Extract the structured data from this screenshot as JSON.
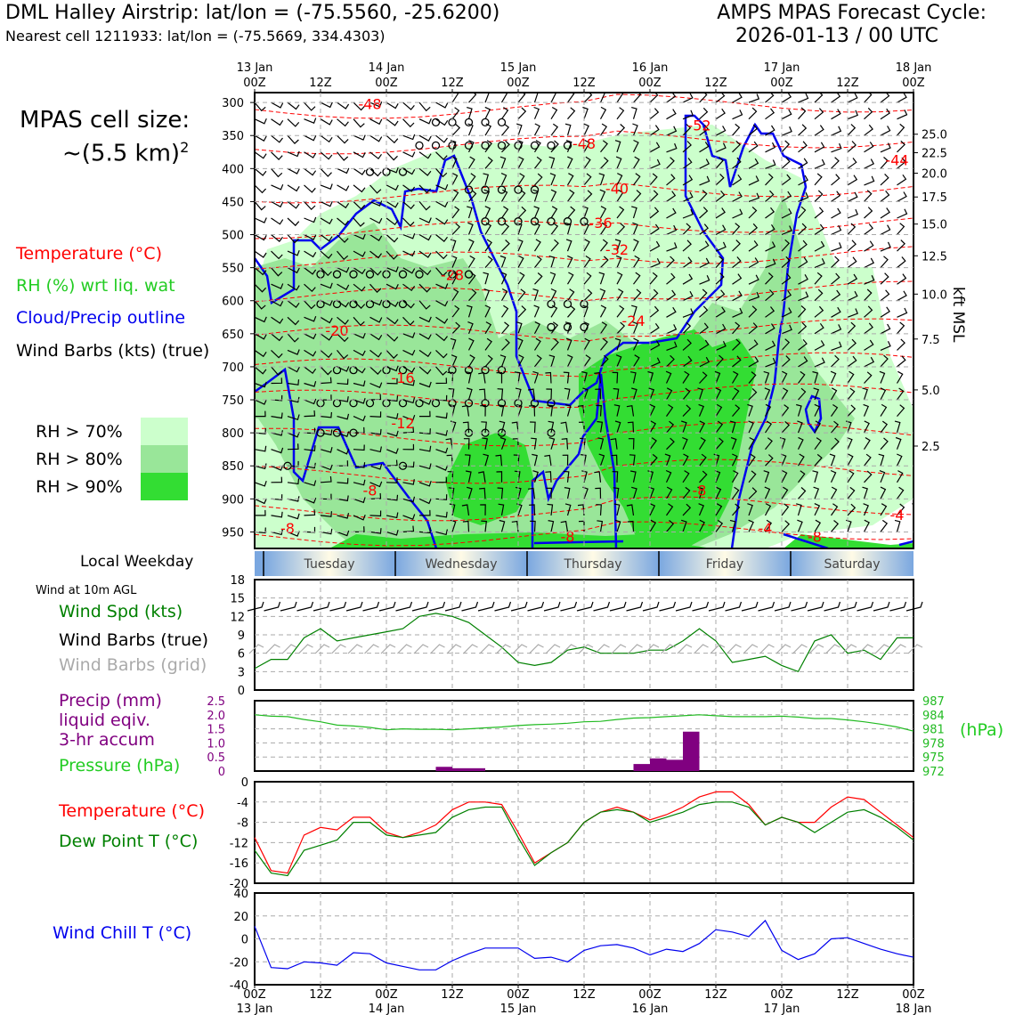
{
  "header": {
    "title_left": "DML Halley Airstrip: lat/lon = (-75.5560, -25.6200)",
    "subtitle_left": "Nearest cell 1211933: lat/lon = (-75.5669, 334.4303)",
    "title_right_1": "AMPS MPAS Forecast Cycle:",
    "title_right_2": "2026-01-13 / 00 UTC"
  },
  "legend": {
    "cell_size_1": "MPAS cell size:",
    "cell_size_2": "~(5.5 km)",
    "cell_size_sup": "2",
    "temperature": "Temperature (°C)",
    "rh": "RH (%) wrt liq. wat",
    "cloud": "Cloud/Precip outline",
    "wind": "Wind Barbs (kts) (true)",
    "rh70": "RH > 70%",
    "rh80": "RH > 80%",
    "rh90": "RH > 90%",
    "rh_colors": {
      "rh70": "#ccffcc",
      "rh80": "#99e699",
      "rh90": "#33dd33"
    },
    "local_weekday": "Local Weekday",
    "wind_10m": "Wind at 10m AGL",
    "wind_spd": "Wind Spd (kts)",
    "wind_barbs_true": "Wind Barbs (true)",
    "wind_barbs_grid": "Wind Barbs (grid)",
    "precip_1": "Precip (mm)",
    "precip_2": "liquid eqiv.",
    "precip_3": "3-hr accum",
    "pressure": "Pressure (hPa)",
    "pressure_unit": "(hPa)",
    "temp2": "Temperature (°C)",
    "dewpoint": "Dew Point T (°C)",
    "windchill": "Wind Chill T (°C)",
    "kft": "kft MSL"
  },
  "time_axis": {
    "top_days": [
      "13 Jan",
      "14 Jan",
      "15 Jan",
      "16 Jan",
      "17 Jan",
      "18 Jan"
    ],
    "hour_labels": [
      "00Z",
      "12Z",
      "00Z",
      "12Z",
      "00Z",
      "12Z",
      "00Z",
      "12Z",
      "00Z",
      "12Z",
      "00Z"
    ]
  },
  "weekdays": [
    "Tuesday",
    "Wednesday",
    "Thursday",
    "Friday",
    "Saturday"
  ],
  "chart_data": [
    {
      "type": "heatmap",
      "title": "Vertical cross-section",
      "y_pressure_ticks": [
        300,
        350,
        400,
        450,
        500,
        550,
        600,
        650,
        700,
        750,
        800,
        850,
        900,
        950
      ],
      "y_kft_ticks": [
        "25.0",
        "22.5",
        "20.0",
        "17.5",
        "15.0",
        "12.5",
        "10.0",
        "7.5",
        "5.0",
        "2.5"
      ],
      "y_kft_pressures": [
        348,
        376,
        407,
        443,
        484,
        532,
        590,
        658,
        735,
        820
      ],
      "temp_labels": [
        {
          "text": "-48",
          "hour": 21,
          "p": 310
        },
        {
          "text": "-52",
          "hour": 81,
          "p": 342
        },
        {
          "text": "-48",
          "hour": 60,
          "p": 370
        },
        {
          "text": "-44",
          "hour": 117,
          "p": 395
        },
        {
          "text": "-40",
          "hour": 66,
          "p": 438
        },
        {
          "text": "-36",
          "hour": 63,
          "p": 490
        },
        {
          "text": "-32",
          "hour": 66,
          "p": 530
        },
        {
          "text": "-28",
          "hour": 36,
          "p": 569
        },
        {
          "text": "-24",
          "hour": 69,
          "p": 638
        },
        {
          "text": "-20",
          "hour": 15,
          "p": 653
        },
        {
          "text": "-16",
          "hour": 27,
          "p": 724
        },
        {
          "text": "-12",
          "hour": 27,
          "p": 793
        },
        {
          "text": "-8",
          "hour": 21,
          "p": 895
        },
        {
          "text": "-8",
          "hour": 81,
          "p": 895
        },
        {
          "text": "-8",
          "hour": 6,
          "p": 952
        },
        {
          "text": "-8",
          "hour": 57,
          "p": 965
        },
        {
          "text": "-4",
          "hour": 93,
          "p": 952
        },
        {
          "text": "-8",
          "hour": 102,
          "p": 965
        },
        {
          "text": "-4",
          "hour": 117,
          "p": 932
        }
      ]
    },
    {
      "type": "line",
      "title": "Wind at 10m AGL",
      "x_hours": [
        0,
        3,
        6,
        9,
        12,
        15,
        18,
        21,
        24,
        27,
        30,
        33,
        36,
        39,
        42,
        45,
        48,
        51,
        54,
        57,
        60,
        63,
        66,
        69,
        72,
        75,
        78,
        81,
        84,
        87,
        90,
        93,
        96,
        99,
        102,
        105,
        108,
        111,
        114,
        117,
        120
      ],
      "series": [
        {
          "name": "Wind Spd (kts)",
          "color": "#008000",
          "values": [
            3.5,
            5,
            5,
            8.5,
            10,
            8,
            8.5,
            9,
            9.5,
            10,
            12,
            12.5,
            12,
            11,
            9,
            7,
            4.5,
            4,
            4.5,
            6.5,
            7,
            6,
            6,
            6,
            6.5,
            6.5,
            8,
            10,
            8,
            4.5,
            5,
            5.5,
            4,
            3,
            8,
            9,
            6,
            6.5,
            5,
            8.5,
            8.5
          ]
        }
      ],
      "ylim": [
        0,
        18
      ],
      "yticks": [
        0,
        3,
        6,
        9,
        12,
        15,
        18
      ]
    },
    {
      "type": "bar",
      "title": "Precip and Pressure",
      "precip_bars": [
        {
          "hour": 36,
          "mm": 0.15
        },
        {
          "hour": 39,
          "mm": 0.1
        },
        {
          "hour": 42,
          "mm": 0.1
        },
        {
          "hour": 72,
          "mm": 0.25
        },
        {
          "hour": 75,
          "mm": 0.45
        },
        {
          "hour": 78,
          "mm": 0.4
        },
        {
          "hour": 81,
          "mm": 1.4
        }
      ],
      "precip_ylim": [
        0,
        2.5
      ],
      "precip_yticks": [
        "0",
        "0.5",
        "1.0",
        "1.5",
        "2.0",
        "2.5"
      ],
      "pressure_series": {
        "name": "Pressure (hPa)",
        "color": "#22bb22",
        "values": [
          984,
          983.7,
          983.6,
          983,
          982.5,
          981.8,
          981.6,
          981.3,
          980.8,
          981,
          980.9,
          980.9,
          980.8,
          981,
          981.2,
          981.4,
          981.7,
          981.9,
          982,
          982.2,
          982.5,
          982.6,
          983.0,
          983.3,
          983.4,
          983.6,
          983.8,
          984.0,
          983.8,
          983.6,
          983.6,
          983.6,
          983.7,
          983.5,
          983.2,
          983.2,
          982.9,
          982.5,
          982.0,
          981.4,
          980.5
        ]
      },
      "pressure_ylim": [
        972,
        987
      ],
      "pressure_yticks": [
        "972",
        "975",
        "978",
        "981",
        "984",
        "987"
      ]
    },
    {
      "type": "line",
      "title": "Temperature and Dew Point",
      "series": [
        {
          "name": "Temperature (°C)",
          "color": "#ff0000",
          "values": [
            -11,
            -17.5,
            -18,
            -10.5,
            -9,
            -9.5,
            -7,
            -7,
            -10,
            -11,
            -10,
            -8.5,
            -5.5,
            -4,
            -4,
            -4.5,
            -10,
            -16,
            -14,
            -12,
            -8,
            -6,
            -5,
            -6,
            -7.5,
            -6.5,
            -5,
            -3,
            -2,
            -2,
            -4.5,
            -8.5,
            -7,
            -8,
            -8,
            -5,
            -3,
            -3.5,
            -6,
            -8.5,
            -11
          ]
        },
        {
          "name": "Dew Point T (°C)",
          "color": "#008000",
          "values": [
            -13.5,
            -18,
            -18.5,
            -13.5,
            -12.5,
            -11.5,
            -8,
            -8,
            -10.5,
            -11,
            -10.5,
            -10,
            -7,
            -5.5,
            -5,
            -5,
            -11,
            -16.5,
            -14,
            -12,
            -8,
            -6,
            -5.5,
            -6,
            -8,
            -7,
            -6,
            -4.5,
            -4,
            -4,
            -5,
            -8.5,
            -7,
            -8,
            -10,
            -8,
            -6,
            -5.5,
            -7,
            -9,
            -11.5
          ]
        }
      ],
      "ylim": [
        -20,
        0
      ],
      "yticks": [
        0,
        -4,
        -8,
        -12,
        -16,
        -20
      ]
    },
    {
      "type": "line",
      "title": "Wind Chill",
      "series": [
        {
          "name": "Wind Chill T (°C)",
          "color": "#0000ee",
          "values": [
            11,
            -25,
            -26,
            -20,
            -21,
            -23,
            -12,
            -13,
            -21,
            -24,
            -27,
            -27,
            -19,
            -13,
            -8,
            -8,
            -8,
            -17,
            -16,
            -20,
            -10,
            -6,
            -5,
            -8,
            -14,
            -9,
            -11,
            -4,
            8,
            6,
            2,
            16,
            -10,
            -18,
            -13,
            0,
            1,
            -4,
            -9,
            -13,
            -16
          ]
        }
      ],
      "ylim": [
        -40,
        40
      ],
      "yticks": [
        40,
        20,
        0,
        -20,
        -40
      ]
    }
  ]
}
